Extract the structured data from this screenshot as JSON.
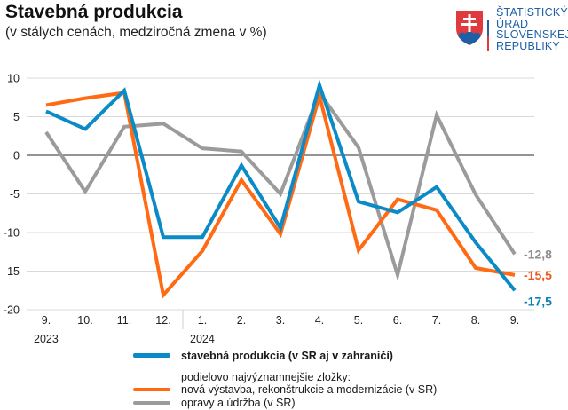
{
  "header": {
    "title": "Stavebná produkcia",
    "subtitle": "(v stálych cenách, medziročná zmena v %)"
  },
  "logo": {
    "lines": [
      "ŠTATISTICKÝ",
      "ÚRAD",
      "SLOVENSKEJ",
      "REPUBLIKY"
    ],
    "color": "#1f5fa6",
    "shield_red": "#e03a3e",
    "shield_blue": "#1f5fa6"
  },
  "legend": {
    "items": [
      {
        "label": "stavebná produkcia (v SR aj v zahraničí)",
        "color": "#0a8ac6",
        "bold": true
      },
      {
        "label": "nová výstavba, rekonštrukcie a modernizácie (v SR)",
        "color": "#ff6a13",
        "bold": false
      },
      {
        "label": "opravy a údržba (v SR)",
        "color": "#9b9b9b",
        "bold": false
      }
    ],
    "subheading": "podielovo najvýznamnejšie zložky:"
  },
  "chart_data": {
    "type": "line",
    "title": "Stavebná produkcia",
    "subtitle": "(v stálych cenách, medziročná zmena v %)",
    "xlabel": "",
    "ylabel": "",
    "categories": [
      "9.",
      "10.",
      "11.",
      "12.",
      "1.",
      "2.",
      "3.",
      "4.",
      "5.",
      "6.",
      "7.",
      "8.",
      "9."
    ],
    "year_labels": [
      {
        "label": "2023",
        "at_index": 0
      },
      {
        "label": "2024",
        "at_index": 4
      }
    ],
    "ylim": [
      -20,
      10
    ],
    "yticks": [
      10,
      5,
      0,
      -5,
      -10,
      -15,
      -20
    ],
    "grid": true,
    "legend_position": "bottom",
    "series": [
      {
        "name": "stavebná produkcia (v SR aj v zahraničí)",
        "color": "#0a8ac6",
        "values": [
          5.7,
          3.4,
          8.4,
          -10.6,
          -10.6,
          -1.3,
          -9.4,
          9.1,
          -6.0,
          -7.4,
          -4.1,
          -11.3,
          -17.5
        ],
        "end_label": "-17,5"
      },
      {
        "name": "nová výstavba, rekonštrukcie a modernizácie (v SR)",
        "color": "#ff6a13",
        "values": [
          6.5,
          7.4,
          8.1,
          -18.1,
          -12.4,
          -3.2,
          -10.2,
          7.7,
          -12.3,
          -5.7,
          -7.1,
          -14.6,
          -15.5
        ],
        "end_label": "-15,5"
      },
      {
        "name": "opravy a údržba (v SR)",
        "color": "#9b9b9b",
        "values": [
          3.0,
          -4.7,
          3.7,
          4.1,
          0.9,
          0.5,
          -5.0,
          8.1,
          1.0,
          -15.5,
          5.2,
          -5.1,
          -12.8
        ],
        "end_label": "-12,8"
      }
    ],
    "end_label_colors": {
      "stavebná produkcia (v SR aj v zahraničí)": "#0a7fb8",
      "nová výstavba, rekonštrukcie a modernizácie (v SR)": "#f0561a",
      "opravy a údržba (v SR)": "#8e8e8e"
    }
  }
}
